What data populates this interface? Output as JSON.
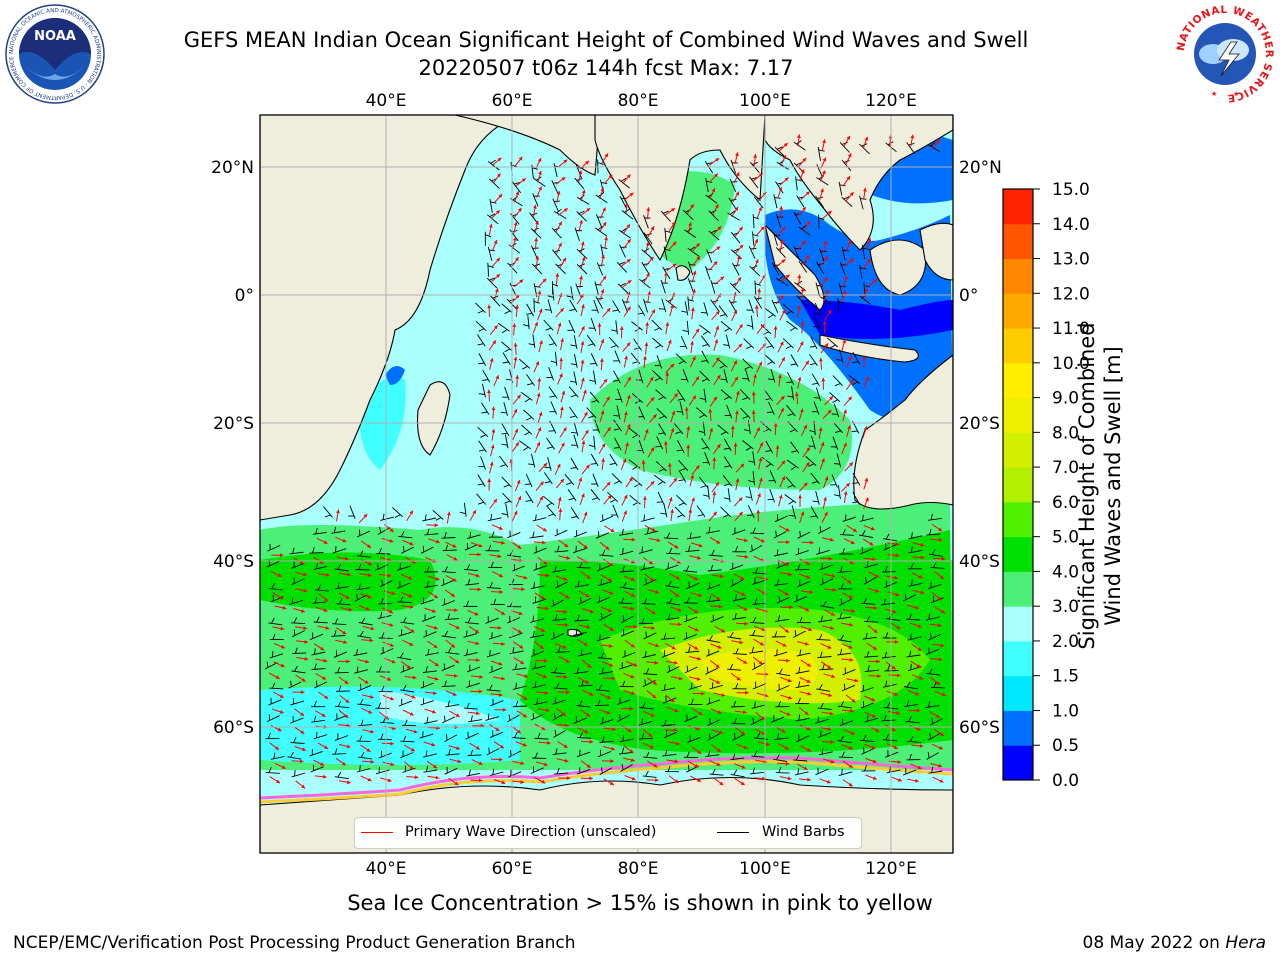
{
  "header": {
    "title_line1": "GEFS MEAN Indian Ocean Significant Height of Combined Wind Waves and Swell",
    "title_line2": "20220507 t06z 144h fcst   Max: 7.17",
    "noaa_logo_text": "NOAA",
    "noaa_logo_ring_text": "NATIONAL OCEANIC AND ATMOSPHERIC ADMINISTRATION · U.S. DEPARTMENT OF COMMERCE",
    "nws_logo_ring_text": "NATIONAL WEATHER SERVICE"
  },
  "map": {
    "lon_ticks_top": [
      "40°E",
      "60°E",
      "80°E",
      "100°E",
      "120°E"
    ],
    "lon_ticks_bottom": [
      "40°E",
      "60°E",
      "80°E",
      "100°E",
      "120°E"
    ],
    "lat_ticks_left": [
      "20°N",
      "0°",
      "20°S",
      "40°S",
      "60°S"
    ],
    "lat_ticks_right": [
      "20°N",
      "0°",
      "20°S",
      "40°S",
      "60°S"
    ],
    "extent": {
      "lon": [
        20,
        130
      ],
      "lat": [
        -72,
        28
      ]
    },
    "colors": {
      "land": "#efeddc",
      "ocean_default": "#aaffff",
      "wave_arrow": "#ff0000",
      "wind_barb": "#000000"
    }
  },
  "legend": {
    "wave_direction_label": "Primary Wave Direction (unscaled)",
    "wind_barbs_label": "Wind Barbs"
  },
  "colorbar": {
    "title_line1": "Significant Height of Combined",
    "title_line2": "Wind Waves and Swell [m]",
    "tick_labels": [
      "0.0",
      "0.5",
      "1.0",
      "1.5",
      "2.0",
      "3.0",
      "4.0",
      "5.0",
      "6.0",
      "7.0",
      "8.0",
      "9.0",
      "10.0",
      "11.0",
      "12.0",
      "13.0",
      "14.0",
      "15.0"
    ],
    "band_colors": [
      "#0000ff",
      "#0070ff",
      "#00e8ff",
      "#40ffff",
      "#aaffff",
      "#4cf078",
      "#00e000",
      "#50f000",
      "#b0f000",
      "#d2f000",
      "#eef000",
      "#ffee00",
      "#ffcc00",
      "#ffaa00",
      "#ff8800",
      "#ff5500",
      "#ff2200"
    ]
  },
  "footer": {
    "note": "Sea Ice Concentration > 15% is shown in pink to yellow",
    "credit": "NCEP/EMC/Verification Post Processing Product Generation Branch",
    "date_prefix": "08 May 2022 on ",
    "date_host": "Hera"
  }
}
